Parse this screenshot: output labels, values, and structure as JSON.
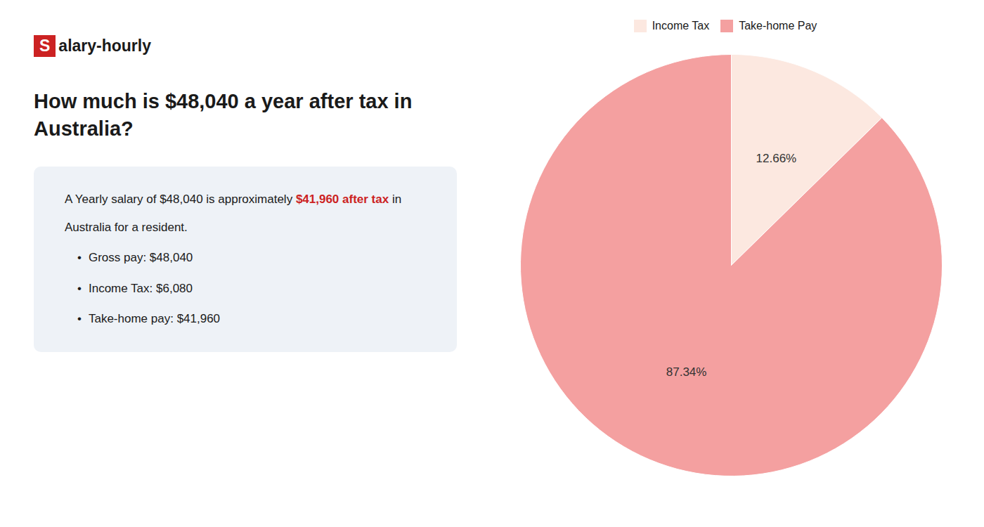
{
  "chart_data": {
    "type": "pie",
    "title": "How much is $48,040 a year after tax in\nAustralia?",
    "categories": [
      "Income Tax",
      "Take-home Pay"
    ],
    "values": [
      12.66,
      87.34
    ],
    "value_labels": [
      "12.66%",
      "87.34%"
    ],
    "colors": [
      "#fce8e0",
      "#f4a0a0"
    ],
    "data_labels": true,
    "legend": "top",
    "annotations": [
      [
        {
          "text": "S",
          "color": "#cc2222"
        },
        {
          "text": "alary-hourly"
        }
      ],
      [
        {
          "text": "A Yearly salary of $48,040 is approximately "
        },
        {
          "text": "$41,960 after tax",
          "color": "#cc2222"
        },
        {
          "text": " in"
        }
      ],
      [
        {
          "text": "Australia for a resident."
        }
      ],
      [
        {
          "text": "•"
        },
        {
          "text": "Gross pay: $48,040"
        }
      ],
      [
        {
          "text": "•"
        },
        {
          "text": "Income Tax: $6,080"
        }
      ],
      [
        {
          "text": "•"
        },
        {
          "text": "Take-home pay: $41,960"
        }
      ]
    ]
  }
}
